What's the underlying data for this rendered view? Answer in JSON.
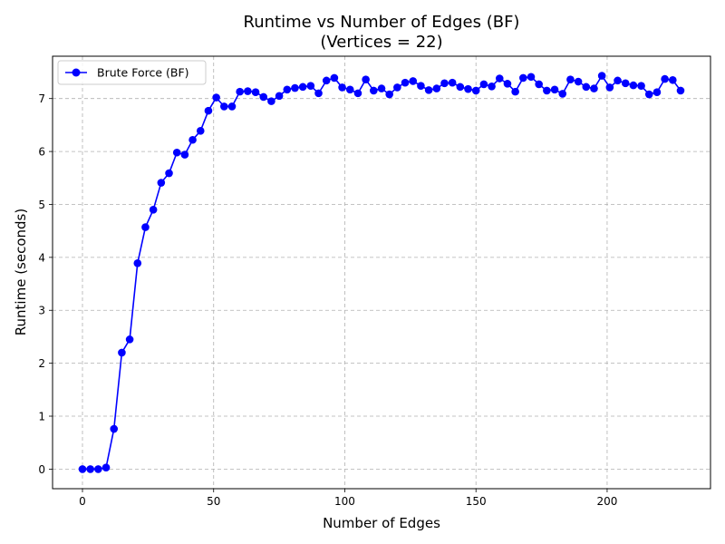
{
  "chart_data": {
    "type": "line",
    "title": "Runtime vs Number of Edges (BF)",
    "subtitle": "(Vertices = 22)",
    "xlabel": "Number of Edges",
    "ylabel": "Runtime (seconds)",
    "xlim": [
      -11.4,
      239.4
    ],
    "ylim": [
      -0.37,
      7.8
    ],
    "xticks": [
      0,
      50,
      100,
      150,
      200
    ],
    "yticks": [
      0,
      1,
      2,
      3,
      4,
      5,
      6,
      7
    ],
    "grid": true,
    "legend_position": "top-left",
    "series": [
      {
        "name": "Brute Force (BF)",
        "color": "#0000ff",
        "marker": "circle",
        "x": [
          0,
          3,
          6,
          9,
          12,
          15,
          18,
          21,
          24,
          27,
          30,
          33,
          36,
          39,
          42,
          45,
          48,
          51,
          54,
          57,
          60,
          63,
          66,
          69,
          72,
          75,
          78,
          81,
          84,
          87,
          90,
          93,
          96,
          99,
          102,
          105,
          108,
          111,
          114,
          117,
          120,
          123,
          126,
          129,
          132,
          135,
          138,
          141,
          144,
          147,
          150,
          153,
          156,
          159,
          162,
          165,
          168,
          171,
          174,
          177,
          180,
          183,
          186,
          189,
          192,
          195,
          198,
          201,
          204,
          207,
          210,
          213,
          216,
          219,
          222,
          225,
          228
        ],
        "y": [
          0.0,
          0.0,
          0.0,
          0.03,
          0.76,
          2.2,
          2.45,
          3.89,
          4.57,
          4.9,
          5.41,
          5.59,
          5.98,
          5.94,
          6.22,
          6.39,
          6.77,
          7.02,
          6.85,
          6.85,
          7.13,
          7.14,
          7.12,
          7.03,
          6.95,
          7.05,
          7.17,
          7.2,
          7.22,
          7.24,
          7.1,
          7.34,
          7.39,
          7.21,
          7.17,
          7.1,
          7.36,
          7.15,
          7.19,
          7.08,
          7.21,
          7.3,
          7.33,
          7.24,
          7.16,
          7.19,
          7.29,
          7.3,
          7.22,
          7.18,
          7.15,
          7.27,
          7.23,
          7.38,
          7.28,
          7.13,
          7.39,
          7.41,
          7.27,
          7.15,
          7.17,
          7.09,
          7.36,
          7.32,
          7.22,
          7.19,
          7.43,
          7.21,
          7.34,
          7.29,
          7.25,
          7.24,
          7.08,
          7.12,
          7.37,
          7.35,
          7.15
        ]
      }
    ]
  }
}
